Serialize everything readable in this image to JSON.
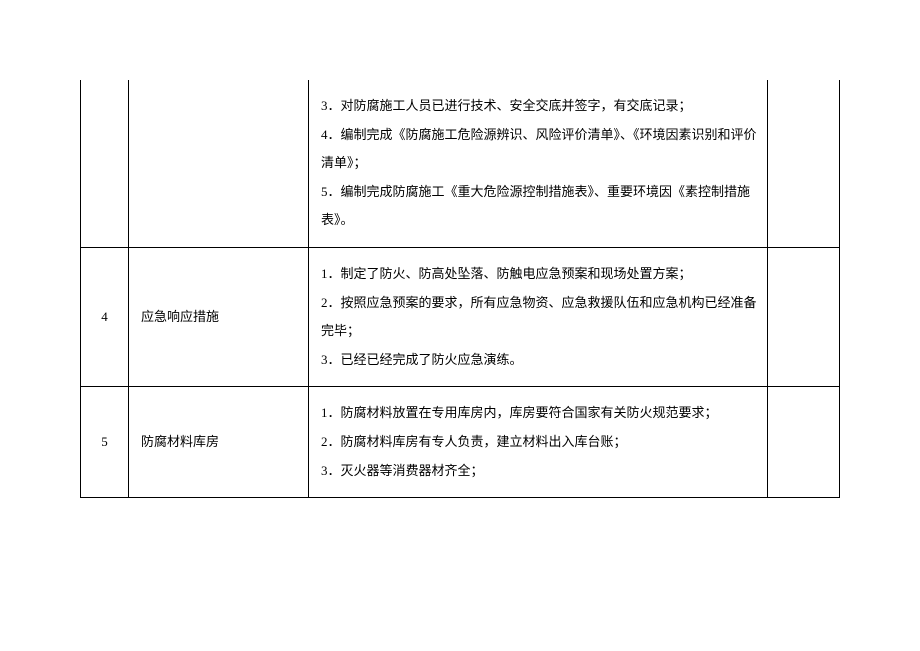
{
  "table": {
    "rows": [
      {
        "num": "",
        "title": "",
        "items": [
          "3．对防腐施工人员已进行技术、安全交底并签字，有交底记录；",
          "4．编制完成《防腐施工危险源辨识、风险评价清单》、《环境因素识别和评价清单》；",
          "5．编制完成防腐施工《重大危险源控制措施表》、重要环境因《素控制措施表》。"
        ],
        "remark": "",
        "isContinuation": true
      },
      {
        "num": "4",
        "title": "应急响应措施",
        "items": [
          "1．制定了防火、防高处坠落、防触电应急预案和现场处置方案；",
          "2．按照应急预案的要求，所有应急物资、应急救援队伍和应急机构已经准备完毕；",
          "3．已经已经完成了防火应急演练。"
        ],
        "remark": "",
        "isContinuation": false
      },
      {
        "num": "5",
        "title": "防腐材料库房",
        "items": [
          "1．防腐材料放置在专用库房内，库房要符合国家有关防火规范要求；",
          "2．防腐材料库房有专人负责，建立材料出入库台账；",
          "3．灭火器等消费器材齐全；"
        ],
        "remark": "",
        "isContinuation": false
      }
    ]
  },
  "styling": {
    "font_family": "SimSun",
    "font_size": 13,
    "line_height": 2.2,
    "border_color": "#000000",
    "text_color": "#000000",
    "background_color": "#ffffff"
  }
}
